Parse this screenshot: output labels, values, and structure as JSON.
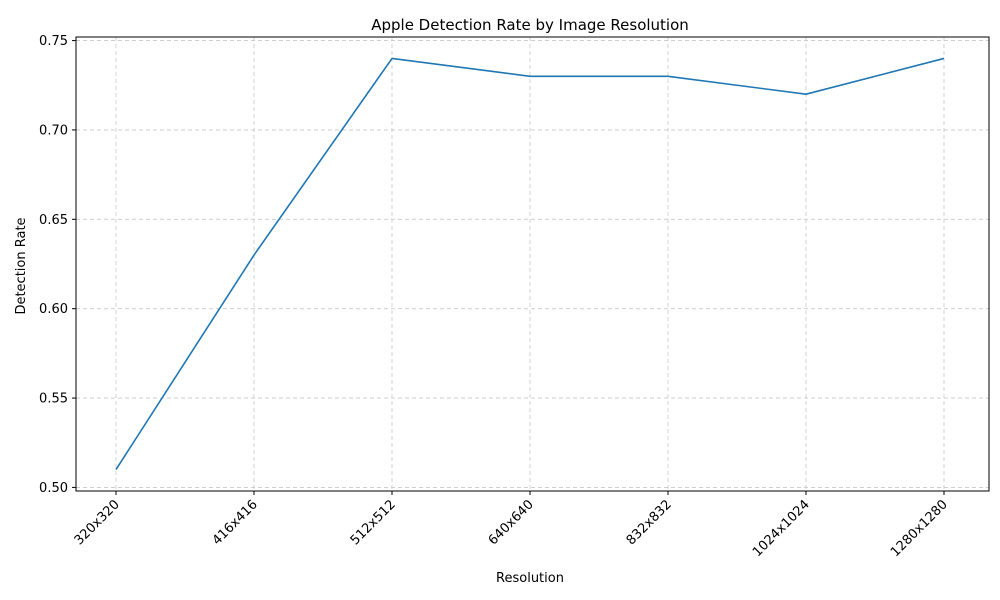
{
  "chart_data": {
    "type": "line",
    "title": "Apple Detection Rate by Image Resolution",
    "xlabel": "Resolution",
    "ylabel": "Detection Rate",
    "categories": [
      "320x320",
      "416x416",
      "512x512",
      "640x640",
      "832x832",
      "1024x1024",
      "1280x1280"
    ],
    "series": [
      {
        "values": [
          0.51,
          0.63,
          0.74,
          0.73,
          0.73,
          0.72,
          0.74
        ],
        "color": "#1f77b4"
      }
    ],
    "ylim": [
      0.498,
      0.752
    ],
    "yticks": [
      0.5,
      0.55,
      0.6,
      0.65,
      0.7,
      0.75
    ],
    "ytick_labels": [
      "0.50",
      "0.55",
      "0.60",
      "0.65",
      "0.70",
      "0.75"
    ],
    "grid": true,
    "x_tick_rotation": 45
  }
}
